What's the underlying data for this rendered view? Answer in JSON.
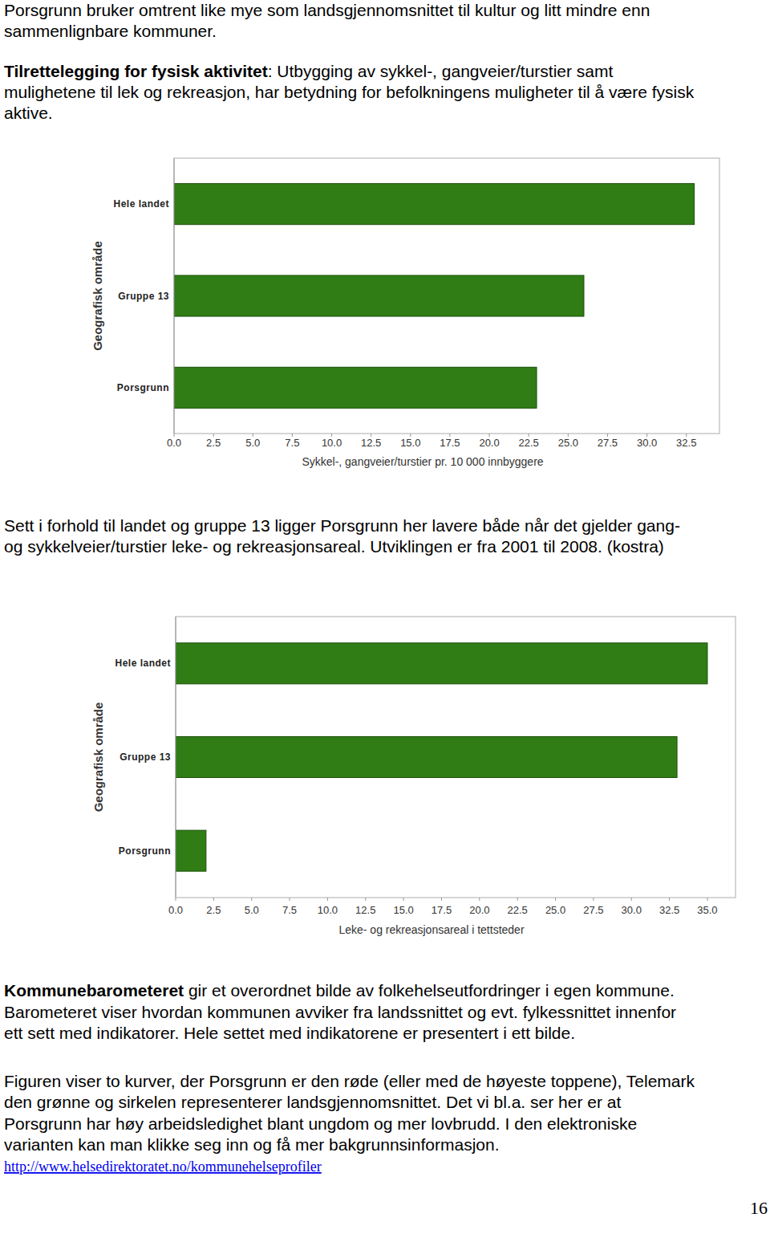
{
  "document": {
    "paragraphs": [
      {
        "lines": [
          "Porsgrunn bruker omtrent like mye som landsgjennomsnittet til kultur og litt mindre enn",
          "sammenlignbare kommuner."
        ]
      },
      {
        "bold": "Tilrettelegging for fysisk aktivitet",
        "lines": [
          ": Utbygging av sykkel-, gangveier/turstier samt",
          "mulighetene til lek og rekreasjon, har betydning for befolkningens muligheter til å være fysisk",
          "aktive."
        ]
      },
      {
        "lines": [
          "Sett i forhold til landet og gruppe 13 ligger Porsgrunn her lavere både når det gjelder gang-",
          "og sykkelveier/turstier leke- og rekreasjonsareal. Utviklingen er fra 2001 til 2008. (kostra)"
        ]
      },
      {
        "bold": "Kommunebarometeret",
        "lines": [
          " gir et overordnet bilde av folkehelseutfordringer i egen kommune.",
          "Barometeret viser hvordan kommunen avviker fra landssnittet og evt. fylkessnittet innenfor",
          "ett sett med indikatorer. Hele settet med indikatorene er presentert i ett bilde."
        ]
      },
      {
        "lines": [
          "Figuren viser to kurver, der Porsgrunn er den røde (eller med de høyeste toppene), Telemark",
          "den grønne og sirkelen representerer landsgjennomsnittet. Det vi bl.a. ser her er at",
          "Porsgrunn har høy arbeidsledighet blant ungdom og mer lovbrudd. I den elektroniske",
          "varianten kan man klikke seg inn og få mer bakgrunnsinformasjon."
        ]
      }
    ],
    "link": "http://www.helsedirektoratet.no/kommunehelseprofiler",
    "page_number": "16"
  },
  "chart_data": [
    {
      "type": "bar",
      "orientation": "horizontal",
      "y_label": "Geografisk område",
      "x_label": "Sykkel-, gangveier/turstier pr. 10 000 innbyggere",
      "categories": [
        "Hele landet",
        "Gruppe 13",
        "Porsgrunn"
      ],
      "values": [
        33.0,
        26.0,
        23.0
      ],
      "color": "#2f7d14",
      "grid": false,
      "xlim": [
        0,
        34.6
      ],
      "xticks": [
        {
          "value": 0,
          "label": "0.0"
        },
        2.5,
        {
          "value": 5,
          "label": "5.0"
        },
        7.5,
        {
          "value": 10,
          "label": "10.0"
        },
        12.5,
        {
          "value": 15,
          "label": "15.0"
        },
        17.5,
        {
          "value": 20,
          "label": "20.0"
        },
        22.5,
        {
          "value": 25,
          "label": "25.0"
        },
        27.5,
        {
          "value": 30,
          "label": "30.0"
        },
        32.5
      ]
    },
    {
      "type": "bar",
      "orientation": "horizontal",
      "y_label": "Geografisk område",
      "x_label": "Leke- og rekreasjonsareal i tettsteder",
      "categories": [
        "Hele landet",
        "Gruppe 13",
        "Porsgrunn"
      ],
      "values": [
        35.0,
        33.0,
        2.0
      ],
      "color": "#2f7d14",
      "grid": false,
      "xlim": [
        0,
        36.85
      ],
      "xticks": [
        {
          "value": 0,
          "label": "0.0"
        },
        2.5,
        {
          "value": 5,
          "label": "5.0"
        },
        7.5,
        {
          "value": 10,
          "label": "10.0"
        },
        12.5,
        {
          "value": 15,
          "label": "15.0"
        },
        17.5,
        {
          "value": 20,
          "label": "20.0"
        },
        22.5,
        {
          "value": 25,
          "label": "25.0"
        },
        27.5,
        {
          "value": 30,
          "label": "30.0"
        },
        32.5,
        {
          "value": 35,
          "label": "35.0"
        }
      ]
    }
  ]
}
